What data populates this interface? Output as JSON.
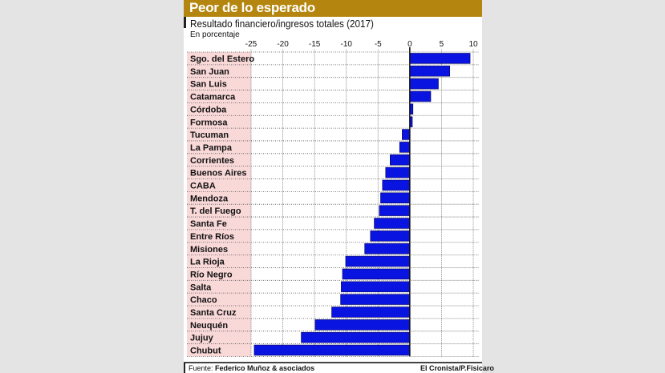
{
  "header": {
    "title": "Peor de lo esperado"
  },
  "footer": {
    "source_label": "Fuente:",
    "source": "Federico Muñoz & asociados",
    "credit": "El Cronista/P.Fisicaro"
  },
  "chart_data": {
    "type": "bar",
    "orientation": "horizontal",
    "title": "Resultado financiero/ingresos totales (2017)",
    "ylabel": "En porcentaje",
    "xlim": [
      -25,
      10
    ],
    "xticks": [
      -25,
      -20,
      -15,
      -10,
      -5,
      0,
      5,
      10
    ],
    "grid": true,
    "bar_color": "#0a14e0",
    "categories": [
      "Sgo. del Estero",
      "San Juan",
      "San Luis",
      "Catamarca",
      "Córdoba",
      "Formosa",
      "Tucuman",
      "La Pampa",
      "Corrientes",
      "Buenos Aires",
      "CABA",
      "Mendoza",
      "T. del Fuego",
      "Santa Fe",
      "Entre Ríos",
      "Misiones",
      "La Rioja",
      "Río Negro",
      "Salta",
      "Chaco",
      "Santa Cruz",
      "Neuquén",
      "Jujuy",
      "Chubut"
    ],
    "values": [
      9.5,
      6.3,
      4.5,
      3.3,
      0.5,
      0.4,
      -1.2,
      -1.6,
      -3.1,
      -3.8,
      -4.3,
      -4.6,
      -4.8,
      -5.6,
      -6.2,
      -7.1,
      -10.1,
      -10.6,
      -10.8,
      -10.9,
      -12.3,
      -14.9,
      -17.1,
      -24.5
    ]
  }
}
